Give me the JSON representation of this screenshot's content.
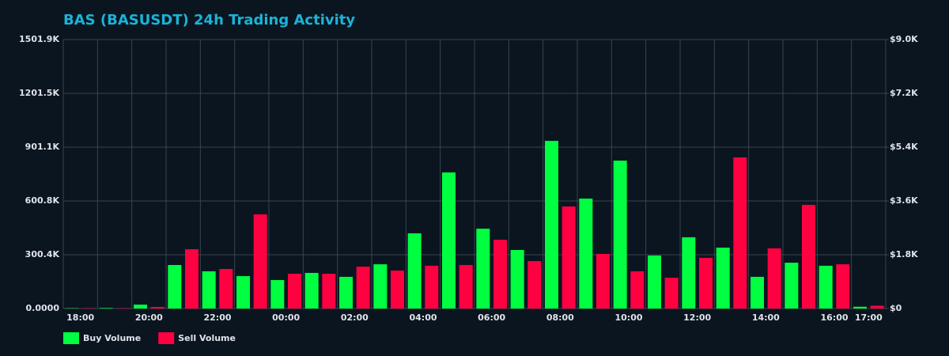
{
  "chart_data": {
    "type": "bar",
    "title": "BAS (BASUSDT) 24h Trading Activity",
    "categories": [
      "18:00",
      null,
      "20:00",
      null,
      "22:00",
      null,
      "00:00",
      null,
      "02:00",
      null,
      "04:00",
      null,
      "06:00",
      null,
      "08:00",
      null,
      "10:00",
      null,
      "12:00",
      null,
      "14:00",
      null,
      "16:00",
      "17:00"
    ],
    "series": [
      {
        "name": "Buy Volume",
        "color": "#00ff41",
        "values": [
          2000,
          3000,
          22000,
          243000,
          208000,
          181000,
          159000,
          199000,
          177000,
          247000,
          420000,
          760000,
          446000,
          327000,
          936000,
          614000,
          826000,
          296000,
          398000,
          340000,
          177000,
          256000,
          239000,
          10000
        ]
      },
      {
        "name": "Sell Volume",
        "color": "#ff0040",
        "values": [
          2000,
          2000,
          9000,
          331000,
          221000,
          526000,
          194000,
          194000,
          234000,
          212000,
          239000,
          243000,
          384000,
          265000,
          570000,
          305000,
          208000,
          172000,
          283000,
          844000,
          336000,
          579000,
          247000,
          16000
        ]
      }
    ],
    "ylim": [
      0,
      1501900
    ],
    "yticks": [
      {
        "value": 0,
        "label": "0.0000"
      },
      {
        "value": 300380,
        "label": "300.4K"
      },
      {
        "value": 600760,
        "label": "600.8K"
      },
      {
        "value": 901140,
        "label": "901.1K"
      },
      {
        "value": 1201520,
        "label": "1201.5K"
      },
      {
        "value": 1501900,
        "label": "1501.9K"
      }
    ],
    "y2lim": [
      0,
      9000
    ],
    "y2ticks": [
      {
        "value": 0,
        "label": "$0"
      },
      {
        "value": 1800,
        "label": "$1.8K"
      },
      {
        "value": 3600,
        "label": "$3.6K"
      },
      {
        "value": 5400,
        "label": "$5.4K"
      },
      {
        "value": 7200,
        "label": "$7.2K"
      },
      {
        "value": 9000,
        "label": "$9.0K"
      }
    ],
    "grid": true,
    "legend": "bottom-left"
  }
}
